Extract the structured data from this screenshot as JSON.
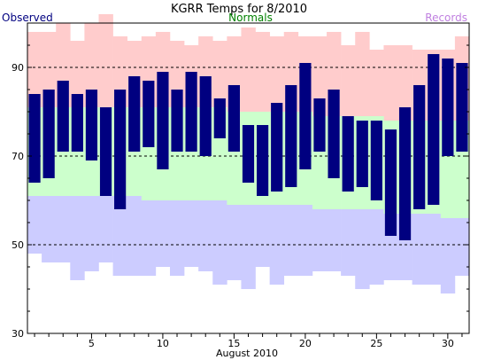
{
  "chart_data": {
    "type": "bar",
    "title": "KGRR Temps for 8/2010",
    "xlabel": "August 2010",
    "ylabel": "",
    "legend": [
      {
        "label": "Observed",
        "color": "#000080",
        "position": "top-left"
      },
      {
        "label": "Normals",
        "color": "#008000",
        "position": "top-center"
      },
      {
        "label": "Records",
        "color": "#c080e0",
        "position": "top-right"
      }
    ],
    "xlim": [
      0.5,
      31.5
    ],
    "ylim": [
      30,
      100
    ],
    "yticks": [
      30,
      50,
      70,
      90
    ],
    "xticks": [
      5,
      10,
      15,
      20,
      25,
      30
    ],
    "dashed_gridlines": [
      50,
      70,
      90
    ],
    "days": [
      1,
      2,
      3,
      4,
      5,
      6,
      7,
      8,
      9,
      10,
      11,
      12,
      13,
      14,
      15,
      16,
      17,
      18,
      19,
      20,
      21,
      22,
      23,
      24,
      25,
      26,
      27,
      28,
      29,
      30,
      31
    ],
    "series": [
      {
        "name": "Observed",
        "kind": "range",
        "color": "#000080",
        "low": [
          64,
          65,
          71,
          71,
          69,
          61,
          58,
          71,
          72,
          67,
          71,
          71,
          70,
          74,
          71,
          64,
          61,
          62,
          63,
          67,
          71,
          65,
          62,
          63,
          60,
          52,
          51,
          58,
          59,
          70,
          71
        ],
        "high": [
          84,
          85,
          87,
          84,
          85,
          81,
          85,
          88,
          87,
          89,
          85,
          89,
          88,
          83,
          86,
          77,
          77,
          82,
          86,
          91,
          83,
          85,
          79,
          78,
          78,
          76,
          81,
          86,
          93,
          92,
          91
        ]
      },
      {
        "name": "Normals",
        "kind": "range",
        "color": "#ccffcc",
        "low": [
          61,
          61,
          61,
          61,
          61,
          61,
          61,
          61,
          60,
          60,
          60,
          60,
          60,
          60,
          59,
          59,
          59,
          59,
          59,
          59,
          58,
          58,
          58,
          58,
          58,
          57,
          57,
          57,
          57,
          56,
          56
        ],
        "high": [
          81,
          81,
          81,
          81,
          81,
          81,
          81,
          81,
          81,
          81,
          81,
          81,
          81,
          81,
          80,
          80,
          80,
          80,
          80,
          80,
          79,
          79,
          79,
          79,
          79,
          78,
          78,
          78,
          78,
          78,
          78
        ]
      },
      {
        "name": "Records",
        "kind": "range",
        "color": "#ffcccc",
        "record_high": [
          98,
          98,
          100,
          96,
          100,
          102,
          97,
          96,
          97,
          98,
          96,
          95,
          97,
          96,
          97,
          99,
          98,
          97,
          98,
          97,
          97,
          98,
          95,
          98,
          94,
          95,
          95,
          94,
          94,
          94,
          97
        ],
        "record_low": [
          48,
          46,
          46,
          42,
          44,
          46,
          43,
          43,
          43,
          45,
          43,
          45,
          44,
          41,
          42,
          40,
          45,
          41,
          43,
          43,
          44,
          44,
          43,
          40,
          41,
          42,
          42,
          41,
          41,
          39,
          43
        ],
        "record_low_fill_color": "#ccccff"
      }
    ]
  }
}
